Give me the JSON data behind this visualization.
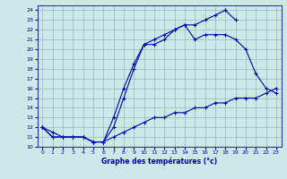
{
  "title": "Graphe des températures (°c)",
  "bg_color": "#cce8e8",
  "line_color": "#0000bb",
  "grid_color": "#99bbbb",
  "xlim": [
    -0.5,
    23.5
  ],
  "ylim": [
    10,
    24.5
  ],
  "xticks": [
    0,
    1,
    2,
    3,
    4,
    5,
    6,
    7,
    8,
    9,
    10,
    11,
    12,
    13,
    14,
    15,
    16,
    17,
    18,
    19,
    20,
    21,
    22,
    23
  ],
  "yticks": [
    10,
    11,
    12,
    13,
    14,
    15,
    16,
    17,
    18,
    19,
    20,
    21,
    22,
    23,
    24
  ],
  "line_top": {
    "x": [
      0,
      1,
      2,
      3,
      4,
      5,
      6,
      7,
      8,
      9,
      10,
      11,
      12,
      13,
      14,
      15,
      16,
      17,
      18,
      19,
      20,
      21,
      22,
      23
    ],
    "y": [
      12,
      11,
      11,
      11,
      11,
      10.5,
      10.5,
      13,
      16,
      18.5,
      20.5,
      21,
      21.5,
      22,
      22.5,
      22.5,
      23,
      23.5,
      24,
      23,
      null,
      null,
      null,
      null
    ]
  },
  "line_mid": {
    "x": [
      0,
      1,
      2,
      3,
      4,
      5,
      6,
      7,
      8,
      9,
      10,
      11,
      12,
      13,
      14,
      15,
      16,
      17,
      18,
      19,
      20,
      21,
      22,
      23
    ],
    "y": [
      12,
      11,
      11,
      11,
      11,
      10.5,
      10.5,
      12,
      15,
      18,
      20.5,
      20.5,
      21,
      22,
      22.5,
      21,
      21.5,
      21.5,
      21.5,
      21,
      20,
      17.5,
      16,
      15.5
    ]
  },
  "line_bot": {
    "x": [
      0,
      1,
      2,
      3,
      4,
      5,
      6,
      7,
      8,
      9,
      10,
      11,
      12,
      13,
      14,
      15,
      16,
      17,
      18,
      19,
      20,
      21,
      22,
      23
    ],
    "y": [
      12,
      11.5,
      11,
      11,
      11,
      10.5,
      10.5,
      11,
      11.5,
      12,
      12.5,
      13,
      13,
      13.5,
      13.5,
      14,
      14,
      14.5,
      14.5,
      15,
      15,
      15,
      15.5,
      16
    ]
  }
}
